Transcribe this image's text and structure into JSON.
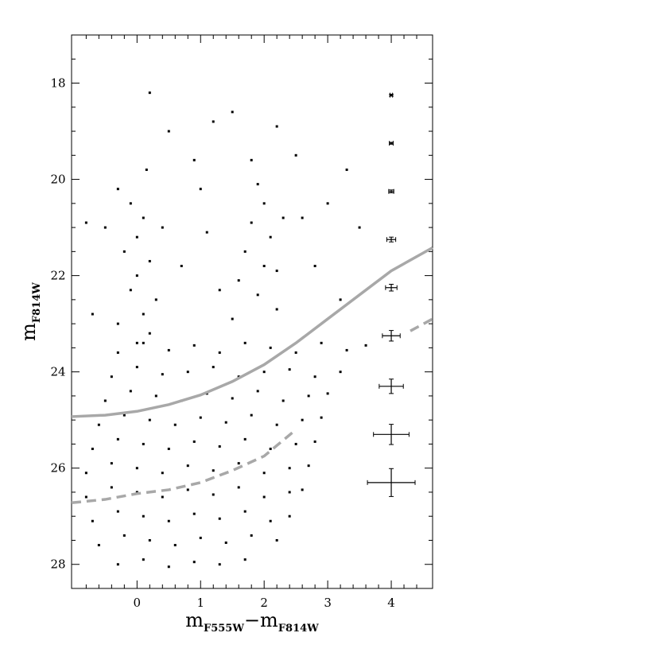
{
  "chart_data": {
    "type": "scatter",
    "xlabel": [
      {
        "text": "m"
      },
      {
        "text": "F555W",
        "sub": true
      },
      {
        "text": "−m"
      },
      {
        "text": "F814W",
        "sub": true
      }
    ],
    "ylabel": [
      {
        "text": "m"
      },
      {
        "text": "F814W",
        "sub": true
      }
    ],
    "xlim": [
      -1.03,
      4.65
    ],
    "ylim": [
      28.5,
      17
    ],
    "xticks": [
      0,
      1,
      2,
      3,
      4
    ],
    "yticks": [
      18,
      20,
      22,
      24,
      26,
      28
    ],
    "xminorticks": [
      -0.8,
      -0.6,
      -0.4,
      -0.2,
      0.2,
      0.4,
      0.6,
      0.8,
      1.2,
      1.4,
      1.6,
      1.8,
      2.2,
      2.4,
      2.6,
      2.8,
      3.2,
      3.4,
      3.6,
      3.8,
      4.2,
      4.4
    ],
    "yminorticks": [
      17.5,
      18.5,
      19,
      19.5,
      20.5,
      21,
      21.5,
      22.5,
      23,
      23.5,
      24.5,
      25,
      25.5,
      26.5,
      27,
      27.5
    ],
    "color": "#000000",
    "x": [
      -0.1,
      0.1,
      0,
      -0.2,
      0.2,
      0,
      -0.1,
      0.3,
      0.1,
      -0.3,
      0.2,
      0,
      0.4,
      -0.3,
      0.15,
      1.9,
      2.0,
      1.8,
      2.1,
      1.7,
      2.0,
      1.6,
      1.9,
      2.2,
      1.5,
      2.3,
      1.8,
      2.2,
      0.5,
      1.2,
      2.5,
      -0.5,
      3.0,
      1.0,
      0.7,
      1.3,
      2.8,
      3.2,
      -0.7,
      0.9,
      1.5,
      2.6,
      3.5,
      -0.8,
      0.2,
      2.2,
      3.3,
      1.1,
      -0.3,
      0.1,
      0.5,
      0.9,
      1.3,
      1.7,
      2.1,
      2.5,
      2.9,
      3.3,
      3.6,
      -0.4,
      0,
      0.4,
      0.8,
      1.2,
      1.6,
      2.0,
      2.4,
      2.8,
      3.2,
      -0.5,
      -0.1,
      0.3,
      0.7,
      1.1,
      1.5,
      1.9,
      2.3,
      2.7,
      3.0,
      -0.6,
      -0.2,
      0.2,
      0.6,
      1.0,
      1.4,
      1.8,
      2.2,
      2.6,
      2.9,
      -0.7,
      -0.3,
      0.1,
      0.5,
      0.9,
      1.3,
      1.7,
      2.1,
      2.5,
      2.8,
      -0.8,
      -0.4,
      0,
      0.4,
      0.8,
      1.2,
      1.6,
      2.0,
      2.4,
      2.7,
      -0.8,
      -0.4,
      0,
      0.4,
      0.8,
      1.2,
      1.6,
      2.0,
      2.4,
      2.6,
      -0.7,
      -0.3,
      0.1,
      0.5,
      0.9,
      1.3,
      1.7,
      2.1,
      2.4,
      -0.6,
      -0.2,
      0.2,
      0.6,
      1.0,
      1.4,
      1.8,
      2.2,
      -0.3,
      0.1,
      0.5,
      0.9,
      1.3,
      1.7
    ],
    "values": [
      20.5,
      20.8,
      21.2,
      21.5,
      21.7,
      22,
      22.3,
      22.5,
      22.8,
      23,
      23.2,
      23.4,
      21,
      20.2,
      19.8,
      20.1,
      20.5,
      20.9,
      21.2,
      21.5,
      21.8,
      22.1,
      22.4,
      22.7,
      22.9,
      20.8,
      19.6,
      21.9,
      19,
      18.8,
      19.5,
      21,
      20.5,
      20.2,
      21.8,
      22.3,
      21.8,
      22.5,
      22.8,
      19.6,
      18.6,
      20.8,
      21,
      20.9,
      18.2,
      18.9,
      19.8,
      21.1,
      23.6,
      23.4,
      23.55,
      23.45,
      23.6,
      23.4,
      23.5,
      23.6,
      23.4,
      23.55,
      23.45,
      24.1,
      23.9,
      24.05,
      24.0,
      23.9,
      24.1,
      24.0,
      23.95,
      24.1,
      24.0,
      24.6,
      24.4,
      24.5,
      24.6,
      24.45,
      24.55,
      24.4,
      24.6,
      24.5,
      24.45,
      25.1,
      24.9,
      25.0,
      25.1,
      24.95,
      25.05,
      24.9,
      25.1,
      25.0,
      24.95,
      25.6,
      25.4,
      25.5,
      25.6,
      25.45,
      25.55,
      25.4,
      25.6,
      25.5,
      25.45,
      26.1,
      25.9,
      26.0,
      26.1,
      25.95,
      26.05,
      25.9,
      26.1,
      26.0,
      25.95,
      26.6,
      26.4,
      26.5,
      26.6,
      26.45,
      26.55,
      26.4,
      26.6,
      26.5,
      26.45,
      27.1,
      26.9,
      27.0,
      27.1,
      26.95,
      27.05,
      26.9,
      27.1,
      27.0,
      27.6,
      27.4,
      27.5,
      27.6,
      27.45,
      27.55,
      27.4,
      27.5,
      28.0,
      27.9,
      28.05,
      27.95,
      28.0,
      27.9
    ],
    "curves": [
      {
        "style": "solid",
        "color": "#a8a8a8",
        "x": [
          -1.03,
          -0.5,
          0,
          0.5,
          1,
          1.5,
          2,
          2.5,
          3,
          3.5,
          4,
          4.65
        ],
        "values": [
          24.93,
          24.9,
          24.82,
          24.68,
          24.48,
          24.2,
          23.85,
          23.4,
          22.9,
          22.4,
          21.9,
          21.42
        ]
      },
      {
        "style": "dashed",
        "color": "#a8a8a8",
        "x": [
          -1.03,
          -0.5,
          0,
          0.5,
          1,
          1.5,
          2,
          2.5,
          3,
          4.3,
          4.65
        ],
        "values": [
          26.72,
          26.65,
          26.53,
          26.45,
          26.3,
          26.05,
          25.75,
          25.2,
          null,
          23.15,
          22.9
        ]
      }
    ],
    "error_bars": {
      "x": [
        4,
        4,
        4,
        4,
        4,
        4,
        4,
        4,
        4
      ],
      "values": [
        18.25,
        19.25,
        20.25,
        21.25,
        22.25,
        23.25,
        24.3,
        25.3,
        26.3
      ],
      "xerr": [
        0.02,
        0.03,
        0.04,
        0.07,
        0.09,
        0.14,
        0.19,
        0.28,
        0.375
      ],
      "yerr": [
        0.02,
        0.02,
        0.03,
        0.05,
        0.07,
        0.11,
        0.15,
        0.21,
        0.29
      ]
    }
  }
}
